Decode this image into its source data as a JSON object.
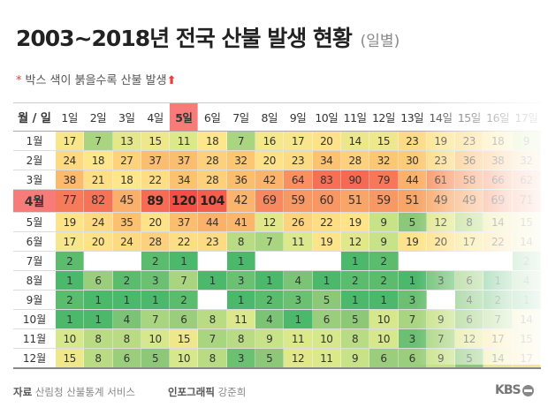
{
  "chart_data": {
    "type": "heatmap",
    "title": "2003~2018년 전국 산불 발생 현황",
    "subtitle": "(일별)",
    "note_mark": "*",
    "note": "박스 색이 붉을수록 산불 발생",
    "corner_label": "월 / 일",
    "columns": [
      "1일",
      "2일",
      "3일",
      "4일",
      "5일",
      "6일",
      "7일",
      "8일",
      "9일",
      "10일",
      "11일",
      "12일",
      "13일",
      "14일",
      "15일",
      "16일",
      "17일"
    ],
    "rows": [
      "1월",
      "2월",
      "3월",
      "4월",
      "5월",
      "6월",
      "7월",
      "8월",
      "9월",
      "10월",
      "11월",
      "12월"
    ],
    "highlight_row": "4월",
    "highlight_column": "5일",
    "values": [
      [
        17,
        7,
        13,
        15,
        11,
        18,
        7,
        16,
        17,
        20,
        14,
        15,
        23,
        19,
        23,
        18,
        9
      ],
      [
        24,
        18,
        27,
        37,
        37,
        28,
        32,
        20,
        23,
        34,
        28,
        32,
        30,
        23,
        36,
        38,
        32
      ],
      [
        38,
        21,
        18,
        22,
        34,
        28,
        36,
        42,
        64,
        83,
        90,
        79,
        44,
        61,
        58,
        66,
        62
      ],
      [
        77,
        82,
        45,
        89,
        120,
        104,
        42,
        69,
        59,
        60,
        51,
        59,
        51,
        49,
        49,
        69,
        71
      ],
      [
        19,
        24,
        35,
        20,
        37,
        44,
        41,
        12,
        26,
        22,
        19,
        9,
        5,
        12,
        8,
        14,
        15
      ],
      [
        17,
        20,
        24,
        28,
        22,
        23,
        8,
        7,
        11,
        19,
        12,
        9,
        19,
        20,
        17,
        22,
        14
      ],
      [
        2,
        null,
        null,
        2,
        1,
        null,
        1,
        null,
        null,
        null,
        1,
        2,
        null,
        null,
        null,
        null,
        2
      ],
      [
        1,
        6,
        2,
        3,
        7,
        1,
        3,
        1,
        4,
        1,
        2,
        2,
        1,
        3,
        6,
        1,
        4
      ],
      [
        2,
        1,
        1,
        1,
        2,
        null,
        1,
        2,
        3,
        5,
        1,
        1,
        3,
        null,
        4,
        2,
        1
      ],
      [
        1,
        1,
        4,
        7,
        6,
        8,
        11,
        4,
        1,
        6,
        5,
        10,
        7,
        9,
        6,
        7,
        14
      ],
      [
        10,
        8,
        8,
        10,
        15,
        7,
        8,
        9,
        11,
        10,
        8,
        10,
        3,
        7,
        12,
        17,
        15
      ],
      [
        15,
        8,
        6,
        5,
        10,
        8,
        3,
        5,
        12,
        11,
        9,
        6,
        6,
        9,
        5,
        14,
        17
      ]
    ],
    "bold_values_in_row_4": [
      89,
      120,
      104
    ],
    "color_scale": {
      "low": "#4cb86b",
      "mid": "#fde68c",
      "high": "#f4554b"
    }
  },
  "footer": {
    "source_label": "자료",
    "source": "산림청 산불통계 서비스",
    "credit_label": "인포그래픽",
    "credit": "강준희"
  },
  "logo": "KBS"
}
